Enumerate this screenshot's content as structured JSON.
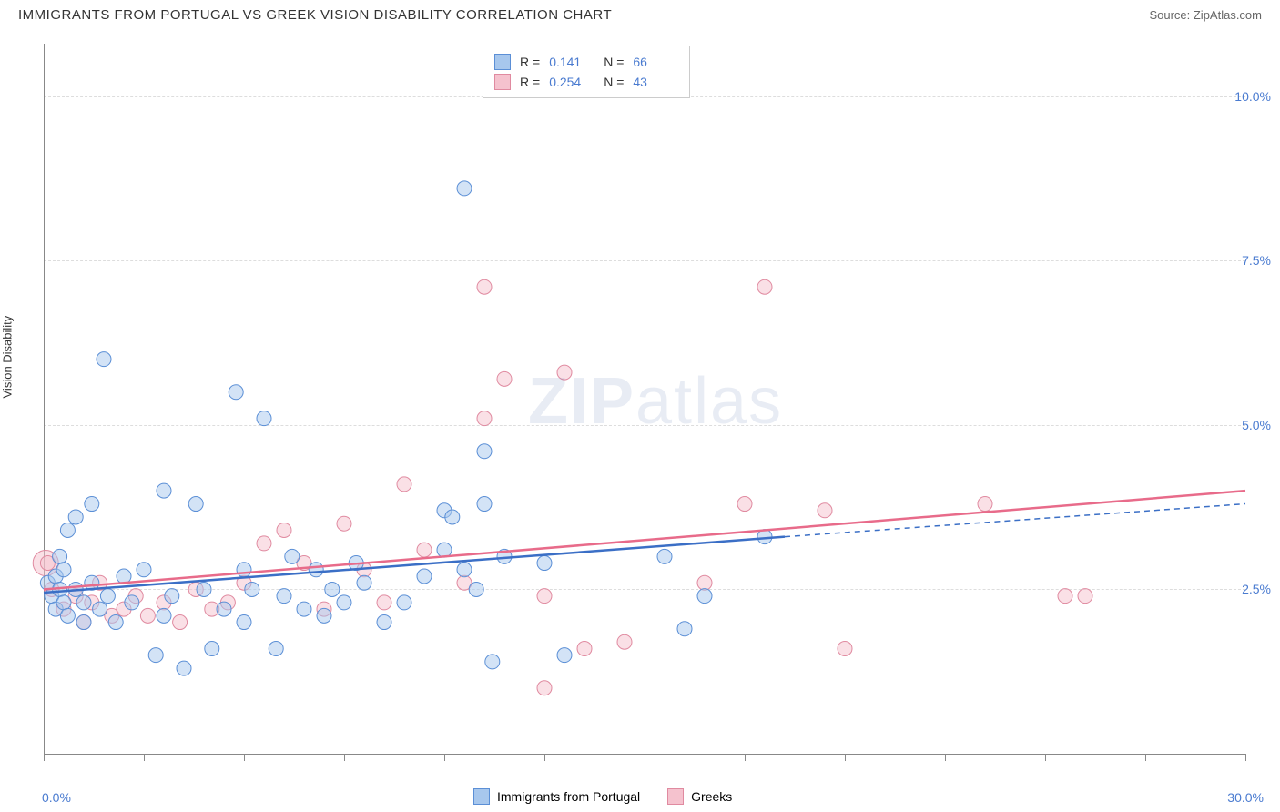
{
  "header": {
    "title": "IMMIGRANTS FROM PORTUGAL VS GREEK VISION DISABILITY CORRELATION CHART",
    "source_prefix": "Source: ",
    "source": "ZipAtlas.com"
  },
  "chart": {
    "type": "scatter",
    "ylabel": "Vision Disability",
    "xlim": [
      0,
      30
    ],
    "ylim": [
      0,
      10.8
    ],
    "xtick_positions": [
      0,
      2.5,
      5,
      7.5,
      10,
      12.5,
      15,
      17.5,
      20,
      22.5,
      25,
      27.5,
      30
    ],
    "xtick_labels": {
      "0": "0.0%",
      "30": "30.0%"
    },
    "ytick_positions": [
      2.5,
      5.0,
      7.5,
      10.0
    ],
    "ytick_labels": [
      "2.5%",
      "5.0%",
      "7.5%",
      "10.0%"
    ],
    "grid_color": "#dddddd",
    "axis_color": "#888888",
    "background_color": "#ffffff",
    "tick_label_color": "#4a7bd0",
    "label_fontsize": 13,
    "tick_fontsize": 14,
    "marker_radius": 8,
    "marker_opacity": 0.5,
    "series": {
      "portugal": {
        "label": "Immigrants from Portugal",
        "fill": "#a7c7ed",
        "stroke": "#5b8fd6",
        "line_color": "#3b6fc6",
        "R": "0.141",
        "N": "66",
        "trend": {
          "x1": 0,
          "y1": 2.45,
          "x2": 18.5,
          "y2": 3.3,
          "dash_x2": 30,
          "dash_y2": 3.8
        },
        "points": [
          [
            0.1,
            2.6
          ],
          [
            0.2,
            2.4
          ],
          [
            0.3,
            2.7
          ],
          [
            0.3,
            2.2
          ],
          [
            0.4,
            2.5
          ],
          [
            0.4,
            3.0
          ],
          [
            0.5,
            2.3
          ],
          [
            0.5,
            2.8
          ],
          [
            0.6,
            2.1
          ],
          [
            0.6,
            3.4
          ],
          [
            0.8,
            2.5
          ],
          [
            0.8,
            3.6
          ],
          [
            1.0,
            2.3
          ],
          [
            1.0,
            2.0
          ],
          [
            1.2,
            3.8
          ],
          [
            1.2,
            2.6
          ],
          [
            1.4,
            2.2
          ],
          [
            1.5,
            6.0
          ],
          [
            1.6,
            2.4
          ],
          [
            1.8,
            2.0
          ],
          [
            2.0,
            2.7
          ],
          [
            2.2,
            2.3
          ],
          [
            2.5,
            2.8
          ],
          [
            2.8,
            1.5
          ],
          [
            3.0,
            4.0
          ],
          [
            3.0,
            2.1
          ],
          [
            3.2,
            2.4
          ],
          [
            3.5,
            1.3
          ],
          [
            3.8,
            3.8
          ],
          [
            4.0,
            2.5
          ],
          [
            4.2,
            1.6
          ],
          [
            4.5,
            2.2
          ],
          [
            4.8,
            5.5
          ],
          [
            5.0,
            2.8
          ],
          [
            5.0,
            2.0
          ],
          [
            5.2,
            2.5
          ],
          [
            5.5,
            5.1
          ],
          [
            5.8,
            1.6
          ],
          [
            6.0,
            2.4
          ],
          [
            6.2,
            3.0
          ],
          [
            6.5,
            2.2
          ],
          [
            6.8,
            2.8
          ],
          [
            7.0,
            2.1
          ],
          [
            7.2,
            2.5
          ],
          [
            7.5,
            2.3
          ],
          [
            7.8,
            2.9
          ],
          [
            8.0,
            2.6
          ],
          [
            8.5,
            2.0
          ],
          [
            9.0,
            2.3
          ],
          [
            9.5,
            2.7
          ],
          [
            10.0,
            3.1
          ],
          [
            10.0,
            3.7
          ],
          [
            10.2,
            3.6
          ],
          [
            10.5,
            2.8
          ],
          [
            10.5,
            8.6
          ],
          [
            10.8,
            2.5
          ],
          [
            11.0,
            4.6
          ],
          [
            11.0,
            3.8
          ],
          [
            11.2,
            1.4
          ],
          [
            11.5,
            3.0
          ],
          [
            12.5,
            2.9
          ],
          [
            13.0,
            1.5
          ],
          [
            15.5,
            3.0
          ],
          [
            16.0,
            1.9
          ],
          [
            16.5,
            2.4
          ],
          [
            18.0,
            3.3
          ]
        ]
      },
      "greeks": {
        "label": "Greeks",
        "fill": "#f5c2ce",
        "stroke": "#e08aa0",
        "line_color": "#e86b8a",
        "R": "0.254",
        "N": "43",
        "trend": {
          "x1": 0,
          "y1": 2.5,
          "x2": 30,
          "y2": 4.0
        },
        "points": [
          [
            0.1,
            2.9
          ],
          [
            0.2,
            2.5
          ],
          [
            0.5,
            2.2
          ],
          [
            0.8,
            2.4
          ],
          [
            1.0,
            2.0
          ],
          [
            1.2,
            2.3
          ],
          [
            1.4,
            2.6
          ],
          [
            1.7,
            2.1
          ],
          [
            2.0,
            2.2
          ],
          [
            2.3,
            2.4
          ],
          [
            2.6,
            2.1
          ],
          [
            3.0,
            2.3
          ],
          [
            3.4,
            2.0
          ],
          [
            3.8,
            2.5
          ],
          [
            4.2,
            2.2
          ],
          [
            4.6,
            2.3
          ],
          [
            5.0,
            2.6
          ],
          [
            5.5,
            3.2
          ],
          [
            6.0,
            3.4
          ],
          [
            6.5,
            2.9
          ],
          [
            7.0,
            2.2
          ],
          [
            7.5,
            3.5
          ],
          [
            8.0,
            2.8
          ],
          [
            8.5,
            2.3
          ],
          [
            9.0,
            4.1
          ],
          [
            9.5,
            3.1
          ],
          [
            10.5,
            2.6
          ],
          [
            11.0,
            5.1
          ],
          [
            11.0,
            7.1
          ],
          [
            11.5,
            5.7
          ],
          [
            12.5,
            2.4
          ],
          [
            12.5,
            1.0
          ],
          [
            13.0,
            5.8
          ],
          [
            13.5,
            1.6
          ],
          [
            14.5,
            1.7
          ],
          [
            16.5,
            2.6
          ],
          [
            17.5,
            3.8
          ],
          [
            18.0,
            7.1
          ],
          [
            19.5,
            3.7
          ],
          [
            20.0,
            1.6
          ],
          [
            23.5,
            3.8
          ],
          [
            25.5,
            2.4
          ],
          [
            26.0,
            2.4
          ]
        ]
      }
    },
    "legend_top": {
      "R_label": "R =",
      "N_label": "N ="
    },
    "watermark": {
      "zip": "ZIP",
      "atlas": "atlas"
    }
  }
}
